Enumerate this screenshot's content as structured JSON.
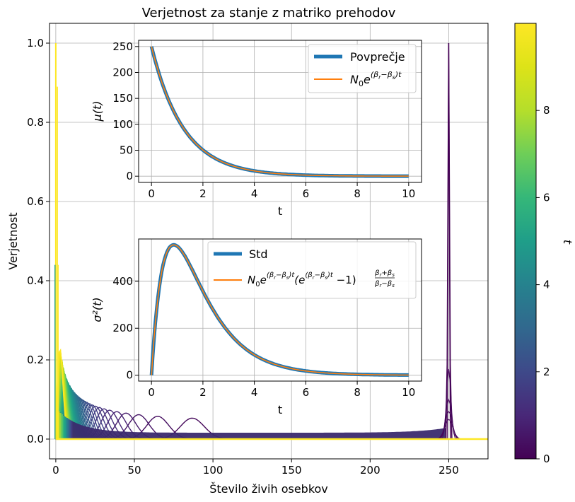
{
  "chart_data": [
    {
      "type": "line",
      "title": "Verjetnost za stanje z matriko prehodov",
      "xlabel": "Število živih osebkov",
      "ylabel": "Verjetnost",
      "xlim": [
        -4,
        275
      ],
      "ylim": [
        -0.05,
        1.05
      ],
      "xticks": [
        0,
        50,
        100,
        150,
        200,
        250
      ],
      "yticks": [
        0.0,
        0.2,
        0.4,
        0.6,
        0.8,
        1.0
      ],
      "x_tick_labels": [
        "0",
        "50",
        "100",
        "150",
        "200",
        "250"
      ],
      "y_tick_labels": [
        "0.0",
        "0.2",
        "0.4",
        "0.6",
        "0.8",
        "1.0"
      ],
      "grid": true,
      "series_description_values": {
        "t_range": [
          0,
          10
        ],
        "initial_peak_x": 250,
        "initial_peak_y": 1.0,
        "final_peak_x": 0,
        "final_peak_y": 1.0
      },
      "colorbar": {
        "label": "t",
        "ticks": [
          0,
          2,
          4,
          6,
          8
        ],
        "tick_labels": [
          "0",
          "2",
          "4",
          "6",
          "8"
        ],
        "range": [
          0,
          10
        ],
        "colormap": "viridis"
      }
    },
    {
      "type": "line",
      "title": "",
      "xlabel": "t",
      "ylabel": "μ(t)",
      "xlim": [
        -0.5,
        10.5
      ],
      "ylim": [
        -12,
        262
      ],
      "xticks": [
        0,
        2,
        4,
        6,
        8,
        10
      ],
      "yticks": [
        0,
        50,
        100,
        150,
        200,
        250
      ],
      "x_tick_labels": [
        "0",
        "2",
        "4",
        "6",
        "8",
        "10"
      ],
      "y_tick_labels": [
        "0",
        "50",
        "100",
        "150",
        "200",
        "250"
      ],
      "grid": true,
      "legend_position": "top-right",
      "series": [
        {
          "name": "Povprečje",
          "formula": "N0*exp(-0.8t)",
          "N0": 250,
          "rate": -0.8,
          "color": "#1f77b4"
        },
        {
          "name": "N₀e^{(βr−βs)t}",
          "formula": "N0*exp(-0.8t)",
          "N0": 250,
          "rate": -0.8,
          "color": "#ff7f0e"
        }
      ]
    },
    {
      "type": "line",
      "title": "",
      "xlabel": "t",
      "ylabel": "σ²(t)",
      "xlim": [
        -0.5,
        10.5
      ],
      "ylim": [
        -25,
        580
      ],
      "xticks": [
        0,
        2,
        4,
        6,
        8,
        10
      ],
      "yticks": [
        0,
        200,
        400
      ],
      "x_tick_labels": [
        "0",
        "2",
        "4",
        "6",
        "8",
        "10"
      ],
      "y_tick_labels": [
        "0",
        "200",
        "400"
      ],
      "grid": true,
      "legend_position": "top",
      "series": [
        {
          "name": "Std",
          "color": "#1f77b4"
        },
        {
          "name": "N₀e^{(βr−βs)t}(e^{(βr−βs)t}−1)(βr+βs)/(βr−βs)",
          "color": "#ff7f0e"
        }
      ],
      "peak": {
        "t": 0.7,
        "value": 555
      }
    }
  ]
}
